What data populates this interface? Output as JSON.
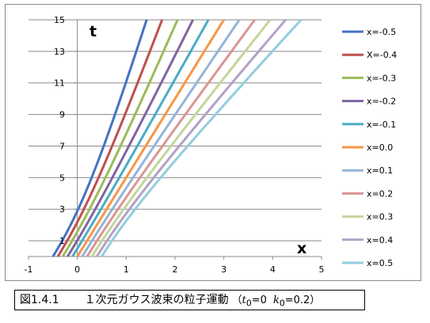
{
  "chart_data": {
    "type": "line",
    "t0": 0,
    "k0": 0.2,
    "xlim": [
      -1,
      5
    ],
    "ylim": [
      0,
      15
    ],
    "xticks": [
      -1,
      0,
      1,
      2,
      3,
      4,
      5
    ],
    "yticks": [
      1,
      3,
      5,
      7,
      9,
      11,
      13,
      15
    ],
    "grid": "horizontal",
    "legend_position": "right",
    "x_axis_letter": "x",
    "t_axis_letter": "t",
    "series": [
      {
        "name": "x=-0.5",
        "x0": -0.5,
        "color": "#4472C4"
      },
      {
        "name": "X=-0.4",
        "x0": -0.4,
        "color": "#C0504D"
      },
      {
        "name": "x=-0.3",
        "x0": -0.3,
        "color": "#9BBB59"
      },
      {
        "name": "x=-0.2",
        "x0": -0.2,
        "color": "#8064A2"
      },
      {
        "name": "x=-0.1",
        "x0": -0.1,
        "color": "#4BACC6"
      },
      {
        "name": "x=0.0",
        "x0": 0.0,
        "color": "#F79646"
      },
      {
        "name": "x=0.1",
        "x0": 0.1,
        "color": "#95B3D7"
      },
      {
        "name": "x=0.2",
        "x0": 0.2,
        "color": "#D99694"
      },
      {
        "name": "x=0.3",
        "x0": 0.3,
        "color": "#C3D69B"
      },
      {
        "name": "x=0.4",
        "x0": 0.4,
        "color": "#B2A1C7"
      },
      {
        "name": "x=0.5",
        "x0": 0.5,
        "color": "#93CDDD"
      }
    ]
  },
  "caption": {
    "figure_number": "図1.4.1",
    "title": "１次元ガウス波束の粒子運動",
    "open_paren": "（",
    "t_symbol": "t",
    "sub_zero": "0",
    "t_value": "=0",
    "k_symbol": "k",
    "k_value": "=0.2",
    "close_paren": "）"
  }
}
